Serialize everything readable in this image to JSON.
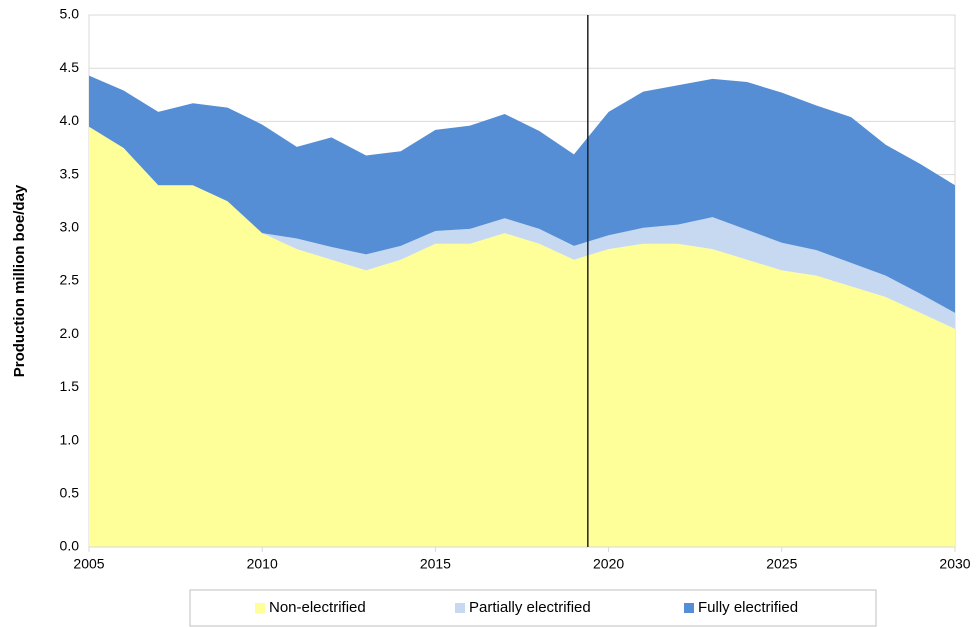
{
  "chart_data": {
    "type": "stacked_area",
    "y_label": "Production million boe/day",
    "x": [
      2005,
      2006,
      2007,
      2008,
      2009,
      2010,
      2011,
      2012,
      2013,
      2014,
      2015,
      2016,
      2017,
      2018,
      2019,
      2020,
      2021,
      2022,
      2023,
      2024,
      2025,
      2026,
      2027,
      2028,
      2029,
      2030
    ],
    "series": [
      {
        "name": "Non-electrified",
        "color": "#ffff99",
        "values": [
          3.95,
          3.75,
          3.4,
          3.4,
          3.25,
          2.95,
          2.8,
          2.7,
          2.6,
          2.7,
          2.85,
          2.85,
          2.95,
          2.85,
          2.7,
          2.8,
          2.85,
          2.85,
          2.8,
          2.7,
          2.6,
          2.55,
          2.45,
          2.35,
          2.2,
          2.05
        ]
      },
      {
        "name": "Partially electrified",
        "color": "#c6d9f1",
        "values": [
          0,
          0,
          0,
          0,
          0,
          0,
          0.1,
          0.12,
          0.15,
          0.13,
          0.12,
          0.14,
          0.14,
          0.14,
          0.13,
          0.13,
          0.15,
          0.18,
          0.3,
          0.28,
          0.26,
          0.24,
          0.22,
          0.2,
          0.18,
          0.15
        ]
      },
      {
        "name": "Fully electrified",
        "color": "#558ed5",
        "values": [
          0.48,
          0.54,
          0.69,
          0.77,
          0.88,
          1.02,
          0.86,
          1.03,
          0.93,
          0.89,
          0.95,
          0.97,
          0.98,
          0.92,
          0.86,
          1.16,
          1.28,
          1.31,
          1.3,
          1.39,
          1.41,
          1.36,
          1.37,
          1.23,
          1.22,
          1.2
        ]
      }
    ],
    "xlim": [
      2005,
      2030
    ],
    "xticks": [
      2005,
      2010,
      2015,
      2020,
      2025,
      2030
    ],
    "ylim": [
      0,
      5
    ],
    "yticks": [
      {
        "value": 0,
        "label": "0.0"
      },
      {
        "value": 0.5,
        "label": "0.5"
      },
      {
        "value": 1,
        "label": "1.0"
      },
      {
        "value": 1.5,
        "label": "1.5"
      },
      {
        "value": 2,
        "label": "2.0"
      },
      {
        "value": 2.5,
        "label": "2.5"
      },
      {
        "value": 3,
        "label": "3.0"
      },
      {
        "value": 3.5,
        "label": "3.5"
      },
      {
        "value": 4,
        "label": "4.0"
      },
      {
        "value": 4.5,
        "label": "4.5"
      },
      {
        "value": 5,
        "label": "5.0"
      }
    ],
    "grid": true,
    "vline_x": 2019.4,
    "legend": "bottom"
  }
}
